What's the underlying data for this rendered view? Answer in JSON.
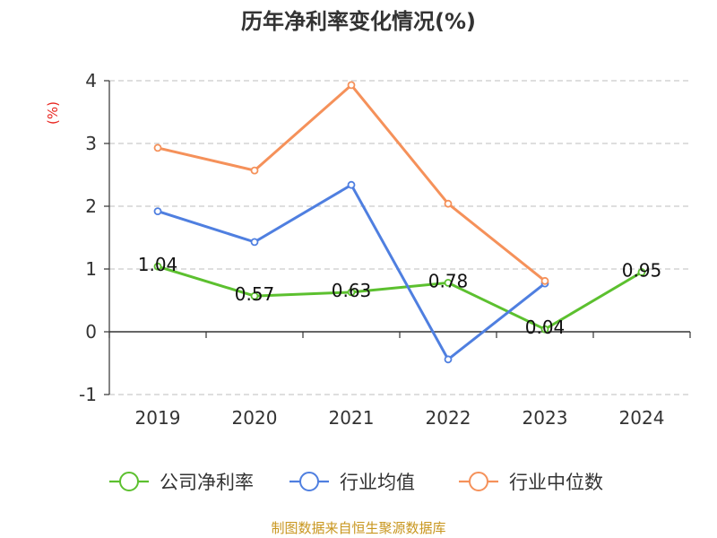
{
  "chart_data": {
    "type": "line",
    "title": "历年净利率变化情况(%)",
    "ylabel": "(%)",
    "xlabel": "",
    "categories": [
      "2019",
      "2020",
      "2021",
      "2022",
      "2023",
      "2024"
    ],
    "ylim": [
      -1,
      4
    ],
    "yticks": [
      -1,
      0,
      1,
      2,
      3,
      4
    ],
    "grid": true,
    "legend_position": "bottom",
    "series": [
      {
        "name": "公司净利率",
        "values": [
          1.04,
          0.57,
          0.63,
          0.78,
          0.04,
          0.95
        ],
        "color": "#5cc02f",
        "labels": [
          "1.04",
          "0.57",
          "0.63",
          "0.78",
          "0.04",
          "0.95"
        ]
      },
      {
        "name": "行业均值",
        "values": [
          1.92,
          1.43,
          2.34,
          -0.44,
          0.77,
          null
        ],
        "color": "#4f7fe0"
      },
      {
        "name": "行业中位数",
        "values": [
          2.93,
          2.57,
          3.93,
          2.04,
          0.81,
          null
        ],
        "color": "#f5915a"
      }
    ]
  },
  "footer": "制图数据来自恒生聚源数据库"
}
